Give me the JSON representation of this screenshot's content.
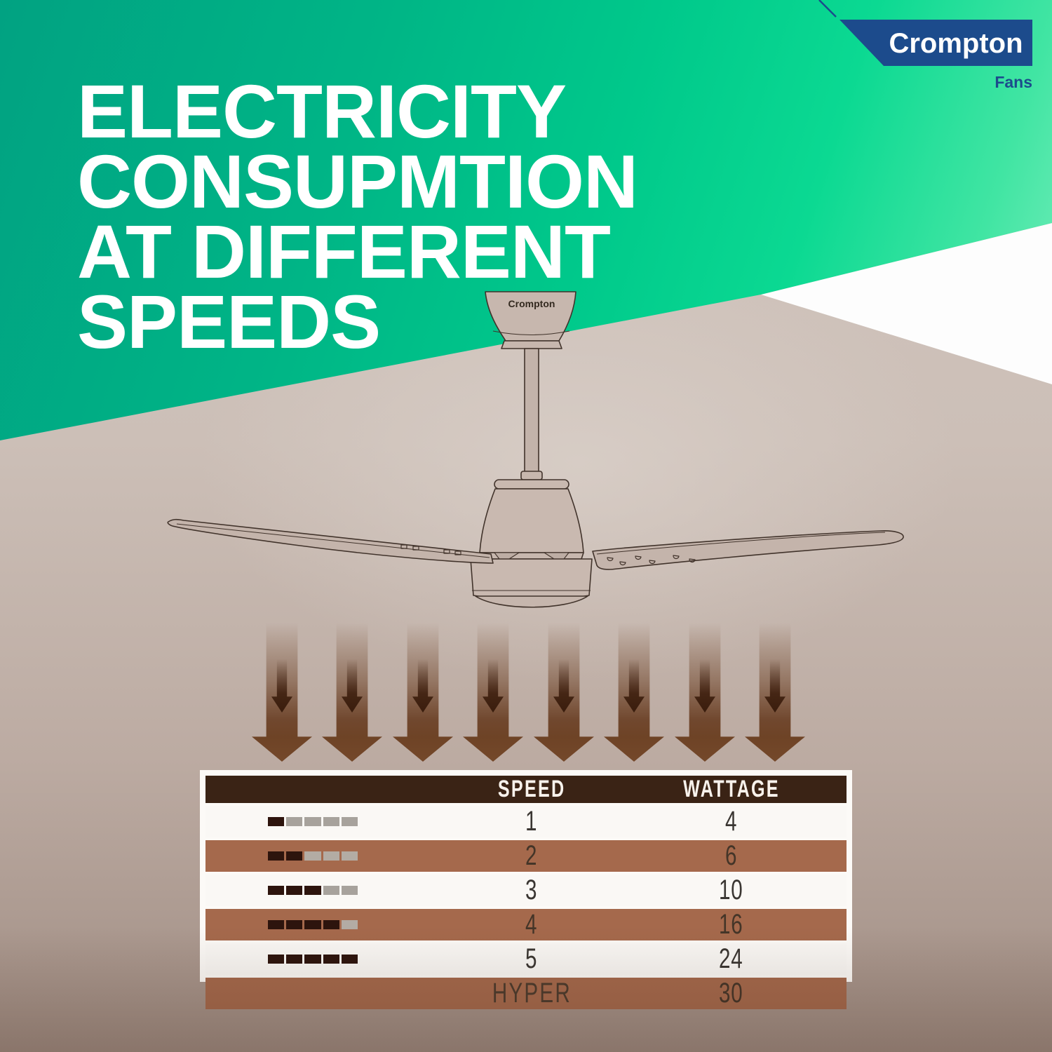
{
  "brand": {
    "name": "Crompton",
    "division": "Fans",
    "navy": "#1c4b8c"
  },
  "title_lines": [
    "ELECTRICITY",
    "CONSUPMTION",
    "AT DIFFERENT",
    "SPEEDS"
  ],
  "fan": {
    "brand_label": "Crompton"
  },
  "table": {
    "segments_total": 5,
    "header": {
      "speed": "SPEED",
      "wattage": "WATTAGE"
    },
    "rows": [
      {
        "speed": "1",
        "wattage": "4",
        "level": 1,
        "variant": "light"
      },
      {
        "speed": "2",
        "wattage": "6",
        "level": 2,
        "variant": "brown"
      },
      {
        "speed": "3",
        "wattage": "10",
        "level": 3,
        "variant": "light"
      },
      {
        "speed": "4",
        "wattage": "16",
        "level": 4,
        "variant": "brown"
      },
      {
        "speed": "5",
        "wattage": "24",
        "level": 5,
        "variant": "light"
      },
      {
        "speed": "HYPER",
        "wattage": "30",
        "level": null,
        "variant": "brown"
      }
    ]
  },
  "chart_data": {
    "type": "table",
    "title": "ELECTRICITY CONSUPMTION AT DIFFERENT SPEEDS",
    "columns": [
      "SPEED",
      "WATTAGE"
    ],
    "categories": [
      "1",
      "2",
      "3",
      "4",
      "5",
      "HYPER"
    ],
    "values": [
      4,
      6,
      10,
      16,
      24,
      30
    ],
    "units": "W",
    "notes": "speed level indicator shows n of 5 filled segments per row; HYPER row has no indicator"
  },
  "colors": {
    "teal_dark": "#01a282",
    "teal_bright": "#0bd992",
    "mint": "#d9fbec",
    "navy": "#1c4b8c",
    "wall_light": "#d2c6bf",
    "wall_dark": "#a08d83",
    "arrow_brown": "#6e4326",
    "arrow_inner_dark": "#3a1d0d",
    "row_brown": "#a5694c",
    "header_brown": "#3a2315",
    "segment_on": "#2d140d",
    "segment_off": "#a7a29c",
    "fan_body": "#c7b7ae"
  }
}
